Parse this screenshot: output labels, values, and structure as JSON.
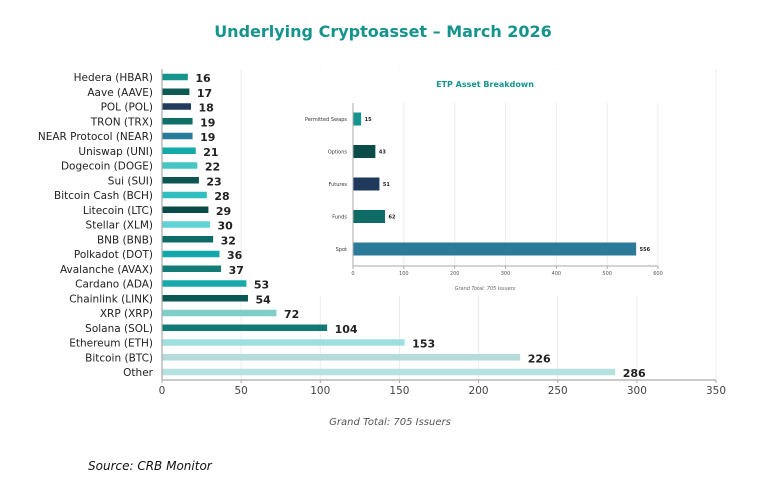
{
  "chart_data": [
    {
      "type": "bar",
      "orientation": "horizontal",
      "title": "Underlying Cryptoasset – March 2026",
      "categories": [
        "Hedera (HBAR)",
        "Aave (AAVE)",
        "POL (POL)",
        "TRON (TRX)",
        "NEAR Protocol (NEAR)",
        "Uniswap (UNI)",
        "Dogecoin (DOGE)",
        "Sui (SUI)",
        "Bitcoin Cash (BCH)",
        "Litecoin (LTC)",
        "Stellar (XLM)",
        "BNB (BNB)",
        "Polkadot (DOT)",
        "Avalanche (AVAX)",
        "Cardano (ADA)",
        "Chainlink (LINK)",
        "XRP (XRP)",
        "Solana (SOL)",
        "Ethereum (ETH)",
        "Bitcoin (BTC)",
        "Other"
      ],
      "values": [
        16,
        17,
        18,
        19,
        19,
        21,
        22,
        23,
        28,
        29,
        30,
        32,
        36,
        37,
        53,
        54,
        72,
        104,
        153,
        226,
        286
      ],
      "colors": [
        "#14948c",
        "#0d5a55",
        "#1f3c5e",
        "#0f6e68",
        "#2a7a9a",
        "#12aaa8",
        "#45c6c4",
        "#0c5550",
        "#30bfbf",
        "#0a4a48",
        "#5fd3d6",
        "#0f6b66",
        "#12a7ab",
        "#137c76",
        "#16aaad",
        "#0b5753",
        "#7fcfc8",
        "#117a74",
        "#9ee0e0",
        "#b3dcda",
        "#b5e2df"
      ],
      "xlim": [
        0,
        350
      ],
      "xticks": [
        "0",
        "50",
        "100",
        "150",
        "200",
        "250",
        "300",
        "350"
      ],
      "grid": true,
      "note": "Grand Total: 705 Issuers"
    },
    {
      "type": "bar",
      "orientation": "horizontal",
      "title": "ETP Asset Breakdown",
      "categories": [
        "Permitted Swaps",
        "Options",
        "Futures",
        "Funds",
        "Spot"
      ],
      "values": [
        15,
        43,
        51,
        62,
        556
      ],
      "colors": [
        "#14948c",
        "#0b4c48",
        "#1f3a5c",
        "#0e6b66",
        "#2b7a9a"
      ],
      "xlim": [
        0,
        600
      ],
      "xticks": [
        "0",
        "100",
        "200",
        "300",
        "400",
        "500",
        "600"
      ],
      "grid": true,
      "note": "Grand Total: 705 Issuers"
    }
  ],
  "source": "Source: CRB Monitor"
}
